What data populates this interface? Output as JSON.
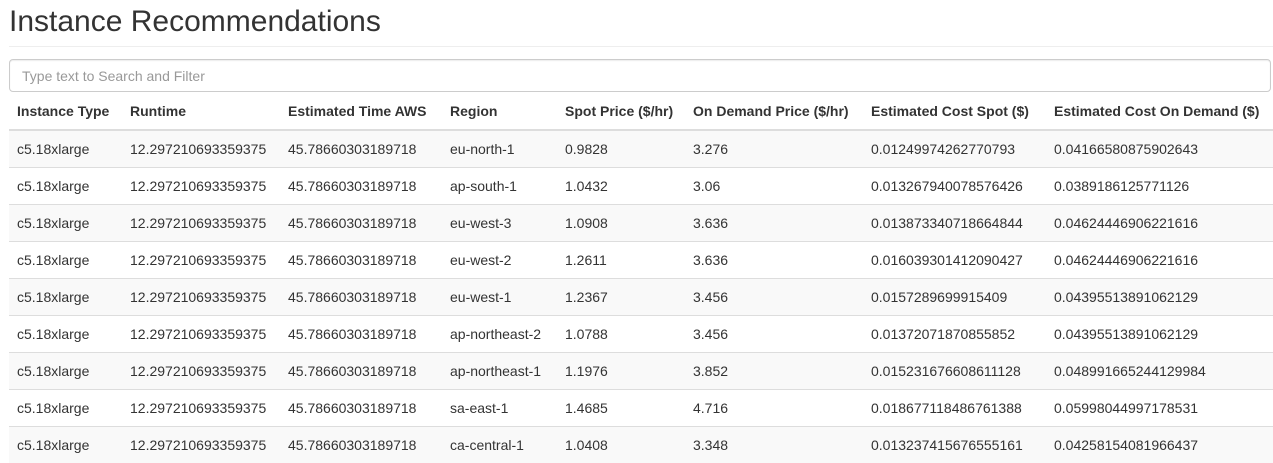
{
  "page": {
    "title": "Instance Recommendations"
  },
  "search": {
    "placeholder": "Type text to Search and Filter",
    "value": ""
  },
  "table": {
    "columns": [
      "Instance Type",
      "Runtime",
      "Estimated Time AWS",
      "Region",
      "Spot Price ($/hr)",
      "On Demand Price ($/hr)",
      "Estimated Cost Spot ($)",
      "Estimated Cost On Demand ($)"
    ],
    "rows": [
      [
        "c5.18xlarge",
        "12.297210693359375",
        "45.78660303189718",
        "eu-north-1",
        "0.9828",
        "3.276",
        "0.01249974262770793",
        "0.04166580875902643"
      ],
      [
        "c5.18xlarge",
        "12.297210693359375",
        "45.78660303189718",
        "ap-south-1",
        "1.0432",
        "3.06",
        "0.013267940078576426",
        "0.0389186125771126"
      ],
      [
        "c5.18xlarge",
        "12.297210693359375",
        "45.78660303189718",
        "eu-west-3",
        "1.0908",
        "3.636",
        "0.013873340718664844",
        "0.04624446906221616"
      ],
      [
        "c5.18xlarge",
        "12.297210693359375",
        "45.78660303189718",
        "eu-west-2",
        "1.2611",
        "3.636",
        "0.016039301412090427",
        "0.04624446906221616"
      ],
      [
        "c5.18xlarge",
        "12.297210693359375",
        "45.78660303189718",
        "eu-west-1",
        "1.2367",
        "3.456",
        "0.0157289699915409",
        "0.04395513891062129"
      ],
      [
        "c5.18xlarge",
        "12.297210693359375",
        "45.78660303189718",
        "ap-northeast-2",
        "1.0788",
        "3.456",
        "0.01372071870855852",
        "0.04395513891062129"
      ],
      [
        "c5.18xlarge",
        "12.297210693359375",
        "45.78660303189718",
        "ap-northeast-1",
        "1.1976",
        "3.852",
        "0.015231676608611128",
        "0.048991665244129984"
      ],
      [
        "c5.18xlarge",
        "12.297210693359375",
        "45.78660303189718",
        "sa-east-1",
        "1.4685",
        "4.716",
        "0.018677118486761388",
        "0.05998044997178531"
      ],
      [
        "c5.18xlarge",
        "12.297210693359375",
        "45.78660303189718",
        "ca-central-1",
        "1.0408",
        "3.348",
        "0.013237415676555161",
        "0.04258154081966437"
      ]
    ]
  }
}
